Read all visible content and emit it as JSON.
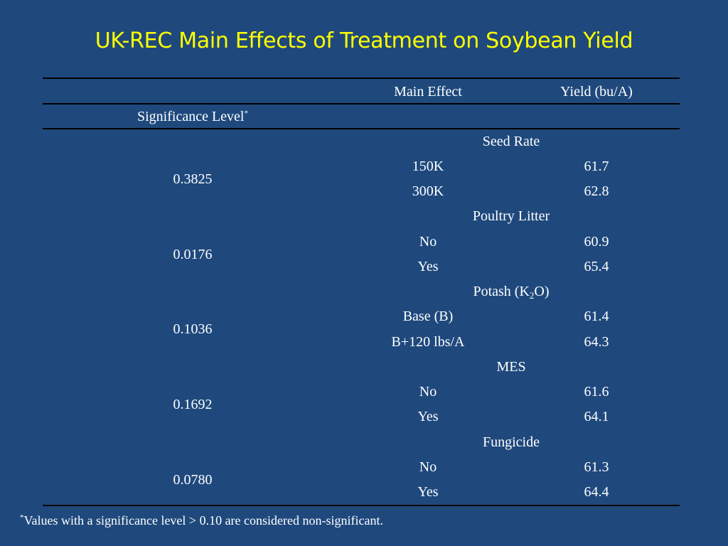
{
  "title": "UK-REC Main Effects of Treatment  on Soybean Yield",
  "table": {
    "header_main_effect": "Main Effect",
    "header_yield": "Yield (bu/A)",
    "header_significance": "Significance Level",
    "header_significance_mark": "*",
    "groups": [
      {
        "name": "Seed Rate",
        "significance": "0.3825",
        "rows": [
          {
            "effect": "150K",
            "yield": "61.7"
          },
          {
            "effect": "300K",
            "yield": "62.8"
          }
        ]
      },
      {
        "name": "Poultry Litter",
        "significance": "0.0176",
        "rows": [
          {
            "effect": "No",
            "yield": "60.9"
          },
          {
            "effect": "Yes",
            "yield": "65.4"
          }
        ]
      },
      {
        "name_prefix": "Potash (K",
        "name_sub": "2",
        "name_suffix": "O)",
        "significance": "0.1036",
        "rows": [
          {
            "effect": "Base (B)",
            "yield": "61.4"
          },
          {
            "effect": "B+120 lbs/A",
            "yield": "64.3"
          }
        ]
      },
      {
        "name": "MES",
        "significance": "0.1692",
        "rows": [
          {
            "effect": "No",
            "yield": "61.6"
          },
          {
            "effect": "Yes",
            "yield": "64.1"
          }
        ]
      },
      {
        "name": "Fungicide",
        "significance": "0.0780",
        "rows": [
          {
            "effect": "No",
            "yield": "61.3"
          },
          {
            "effect": "Yes",
            "yield": "64.4"
          }
        ]
      }
    ]
  },
  "footnote": {
    "mark": "*",
    "text": "Values with a significance level > 0.10 are considered non-significant."
  }
}
